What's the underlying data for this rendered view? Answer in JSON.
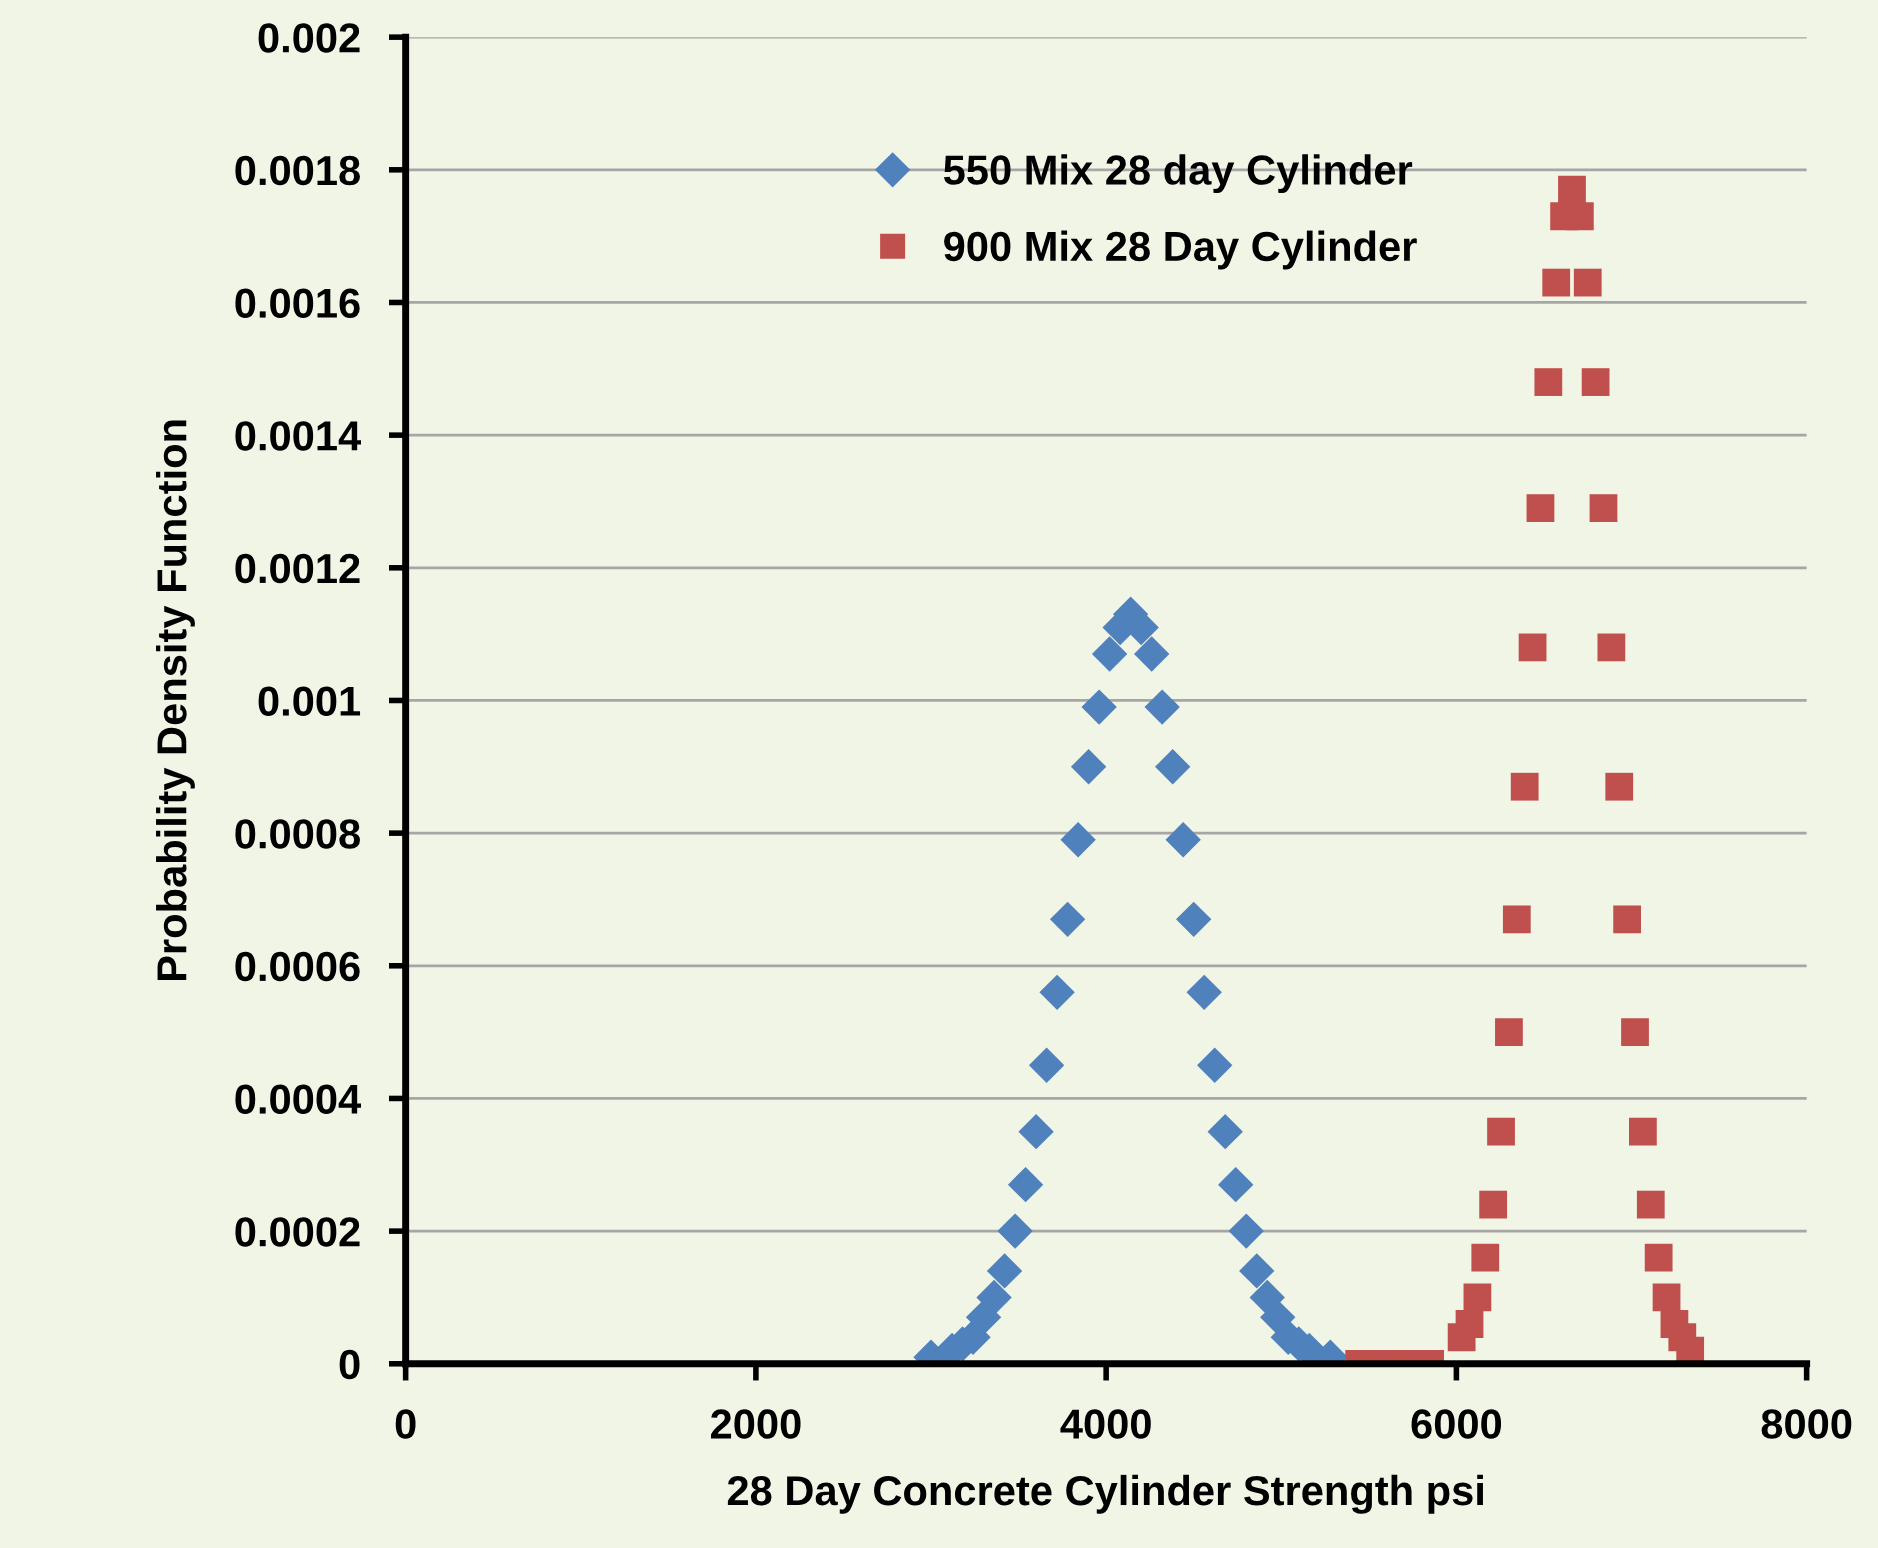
{
  "chart_data": {
    "type": "scatter",
    "xlabel": "28 Day Concrete Cylinder Strength psi",
    "ylabel": "Probability Density Function",
    "xlim": [
      0,
      8000
    ],
    "xticks": [
      0,
      2000,
      4000,
      6000,
      8000
    ],
    "ylim": [
      0,
      0.002
    ],
    "yticks": [
      0,
      0.0002,
      0.0004,
      0.0006,
      0.0008,
      0.001,
      0.0012,
      0.0014,
      0.0016,
      0.0018,
      0.002
    ],
    "grid": "y",
    "legend": "top",
    "line_style": "none",
    "series": [
      {
        "name": "550 Mix 28 day Cylinder",
        "color": "#4f81bd",
        "marker": "diamond",
        "x": [
          3000,
          3120,
          3180,
          3240,
          3300,
          3360,
          3420,
          3480,
          3540,
          3600,
          3660,
          3720,
          3780,
          3840,
          3900,
          3960,
          4020,
          4080,
          4140,
          4200,
          4260,
          4320,
          4380,
          4440,
          4500,
          4560,
          4620,
          4680,
          4740,
          4800,
          4860,
          4920,
          4980,
          5040,
          5100,
          5160,
          5280
        ],
        "values": [
          1e-05,
          2e-05,
          3e-05,
          4e-05,
          7e-05,
          0.0001,
          0.00014,
          0.0002,
          0.00027,
          0.00035,
          0.00045,
          0.00056,
          0.00067,
          0.00079,
          0.0009,
          0.00099,
          0.00107,
          0.00111,
          0.00113,
          0.00111,
          0.00107,
          0.00099,
          0.0009,
          0.00079,
          0.00067,
          0.00056,
          0.00045,
          0.00035,
          0.00027,
          0.0002,
          0.00014,
          0.0001,
          7e-05,
          4e-05,
          3e-05,
          2e-05,
          1e-05
        ]
      },
      {
        "name": "900 Mix 28 Day Cylinder",
        "color": "#c0504d",
        "marker": "square",
        "x": [
          5445,
          5580,
          5715,
          5850,
          6030,
          6075,
          6120,
          6165,
          6210,
          6255,
          6300,
          6345,
          6390,
          6435,
          6480,
          6525,
          6570,
          6615,
          6660,
          6705,
          6750,
          6795,
          6840,
          6885,
          6930,
          6975,
          7020,
          7065,
          7110,
          7155,
          7200,
          7245,
          7290,
          7335
        ],
        "values": [
          0,
          0,
          0,
          0,
          4e-05,
          6e-05,
          0.0001,
          0.00016,
          0.00024,
          0.00035,
          0.0005,
          0.00067,
          0.00087,
          0.00108,
          0.00129,
          0.00148,
          0.00163,
          0.00173,
          0.00177,
          0.00173,
          0.00163,
          0.00148,
          0.00129,
          0.00108,
          0.00087,
          0.00067,
          0.0005,
          0.00035,
          0.00024,
          0.00016,
          0.0001,
          6e-05,
          4e-05,
          2e-05
        ]
      }
    ]
  }
}
